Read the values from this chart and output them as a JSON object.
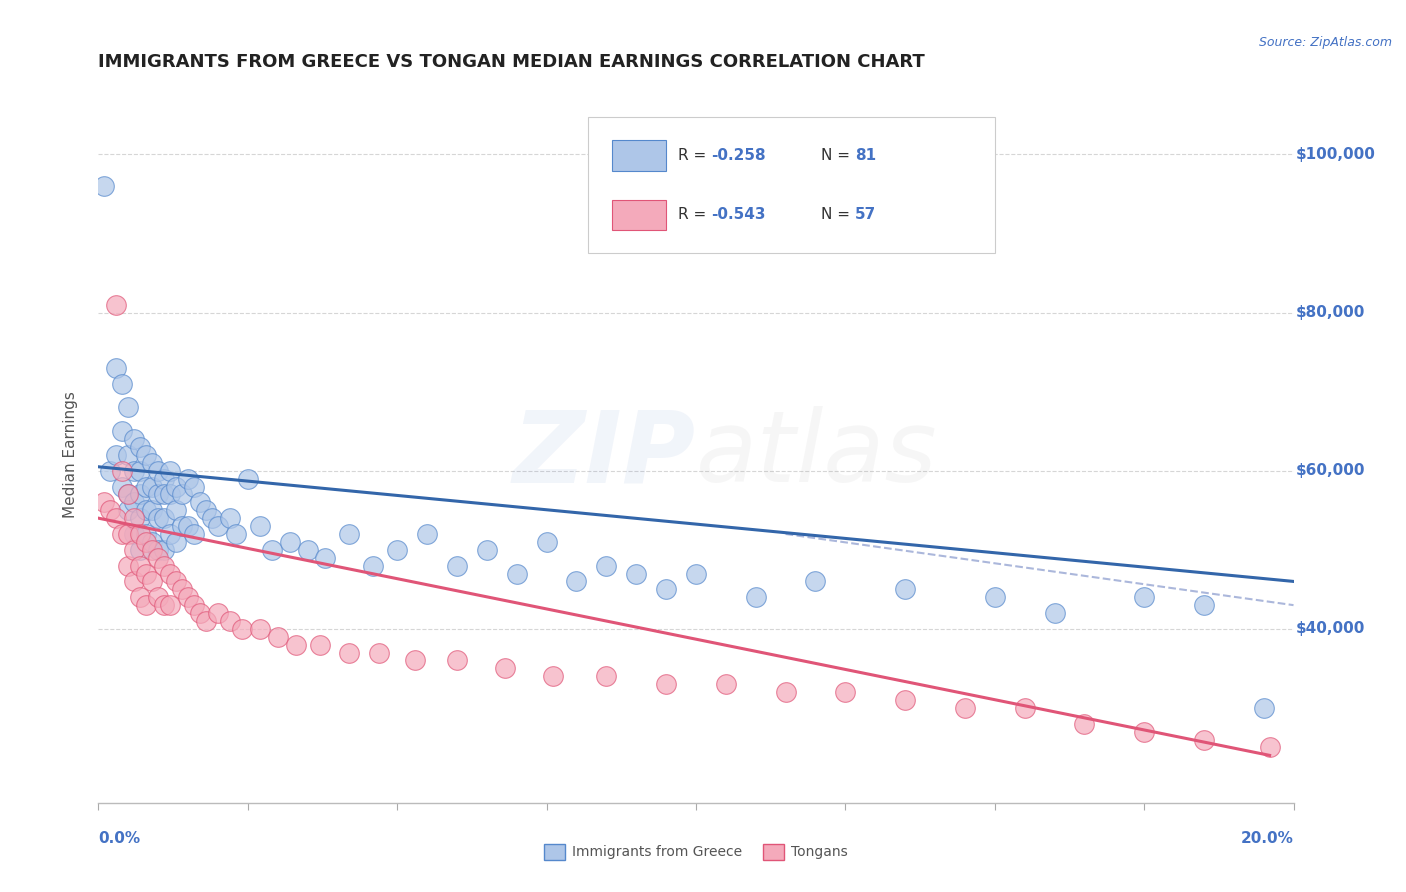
{
  "title": "IMMIGRANTS FROM GREECE VS TONGAN MEDIAN EARNINGS CORRELATION CHART",
  "source": "Source: ZipAtlas.com",
  "ylabel": "Median Earnings",
  "xmin": 0.0,
  "xmax": 0.2,
  "ymin": 18000,
  "ymax": 106000,
  "yticks": [
    40000,
    60000,
    80000,
    100000
  ],
  "ytick_labels": [
    "$40,000",
    "$60,000",
    "$80,000",
    "$100,000"
  ],
  "xtick_positions": [
    0.0,
    0.025,
    0.05,
    0.075,
    0.1,
    0.125,
    0.15,
    0.175,
    0.2
  ],
  "legend_r1": "R = -0.258",
  "legend_n1": "N = 81",
  "legend_r2": "R = -0.543",
  "legend_n2": "N = 57",
  "blue_color": "#AEC6E8",
  "blue_edge": "#5588CC",
  "blue_line": "#3366AA",
  "pink_color": "#F4AABB",
  "pink_edge": "#E05577",
  "pink_line": "#E05577",
  "dashed_line_color": "#8899CC",
  "axis_color": "#4472C4",
  "title_color": "#222222",
  "blue_scatter_x": [
    0.001,
    0.002,
    0.003,
    0.003,
    0.004,
    0.004,
    0.004,
    0.005,
    0.005,
    0.005,
    0.005,
    0.006,
    0.006,
    0.006,
    0.006,
    0.007,
    0.007,
    0.007,
    0.007,
    0.007,
    0.008,
    0.008,
    0.008,
    0.008,
    0.009,
    0.009,
    0.009,
    0.009,
    0.01,
    0.01,
    0.01,
    0.01,
    0.011,
    0.011,
    0.011,
    0.011,
    0.012,
    0.012,
    0.012,
    0.013,
    0.013,
    0.013,
    0.014,
    0.014,
    0.015,
    0.015,
    0.016,
    0.016,
    0.017,
    0.018,
    0.019,
    0.02,
    0.022,
    0.023,
    0.025,
    0.027,
    0.029,
    0.032,
    0.035,
    0.038,
    0.042,
    0.046,
    0.05,
    0.055,
    0.06,
    0.065,
    0.07,
    0.075,
    0.08,
    0.085,
    0.09,
    0.095,
    0.1,
    0.11,
    0.12,
    0.135,
    0.15,
    0.16,
    0.175,
    0.185,
    0.195
  ],
  "blue_scatter_y": [
    96000,
    60000,
    62000,
    73000,
    71000,
    65000,
    58000,
    68000,
    62000,
    57000,
    55000,
    64000,
    60000,
    56000,
    52000,
    63000,
    60000,
    57000,
    54000,
    50000,
    62000,
    58000,
    55000,
    52000,
    61000,
    58000,
    55000,
    51000,
    60000,
    57000,
    54000,
    50000,
    59000,
    57000,
    54000,
    50000,
    60000,
    57000,
    52000,
    58000,
    55000,
    51000,
    57000,
    53000,
    59000,
    53000,
    58000,
    52000,
    56000,
    55000,
    54000,
    53000,
    54000,
    52000,
    59000,
    53000,
    50000,
    51000,
    50000,
    49000,
    52000,
    48000,
    50000,
    52000,
    48000,
    50000,
    47000,
    51000,
    46000,
    48000,
    47000,
    45000,
    47000,
    44000,
    46000,
    45000,
    44000,
    42000,
    44000,
    43000,
    30000
  ],
  "pink_scatter_x": [
    0.001,
    0.002,
    0.003,
    0.003,
    0.004,
    0.004,
    0.005,
    0.005,
    0.005,
    0.006,
    0.006,
    0.006,
    0.007,
    0.007,
    0.007,
    0.008,
    0.008,
    0.008,
    0.009,
    0.009,
    0.01,
    0.01,
    0.011,
    0.011,
    0.012,
    0.012,
    0.013,
    0.014,
    0.015,
    0.016,
    0.017,
    0.018,
    0.02,
    0.022,
    0.024,
    0.027,
    0.03,
    0.033,
    0.037,
    0.042,
    0.047,
    0.053,
    0.06,
    0.068,
    0.076,
    0.085,
    0.095,
    0.105,
    0.115,
    0.125,
    0.135,
    0.145,
    0.155,
    0.165,
    0.175,
    0.185,
    0.196
  ],
  "pink_scatter_y": [
    56000,
    55000,
    54000,
    81000,
    60000,
    52000,
    57000,
    52000,
    48000,
    54000,
    50000,
    46000,
    52000,
    48000,
    44000,
    51000,
    47000,
    43000,
    50000,
    46000,
    49000,
    44000,
    48000,
    43000,
    47000,
    43000,
    46000,
    45000,
    44000,
    43000,
    42000,
    41000,
    42000,
    41000,
    40000,
    40000,
    39000,
    38000,
    38000,
    37000,
    37000,
    36000,
    36000,
    35000,
    34000,
    34000,
    33000,
    33000,
    32000,
    32000,
    31000,
    30000,
    30000,
    28000,
    27000,
    26000,
    25000
  ],
  "blue_trend_x": [
    0.0,
    0.2
  ],
  "blue_trend_y": [
    60500,
    46000
  ],
  "pink_trend_x": [
    0.0,
    0.196
  ],
  "pink_trend_y": [
    54000,
    24000
  ],
  "dashed_trend_x": [
    0.115,
    0.2
  ],
  "dashed_trend_y": [
    52000,
    43000
  ]
}
